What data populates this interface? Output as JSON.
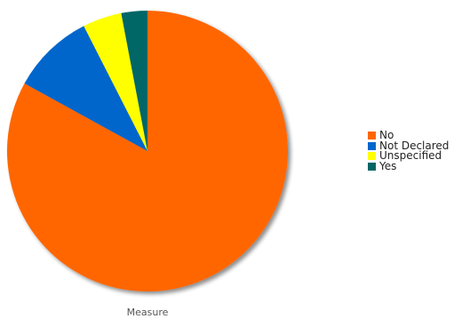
{
  "chart_data": {
    "type": "pie",
    "title": "",
    "xlabel": "Measure",
    "categories": [
      "No",
      "Not Declared",
      "Unspecified",
      "Yes"
    ],
    "values": [
      83,
      9.5,
      4.5,
      3
    ],
    "colors": [
      "#ff6600",
      "#0066cc",
      "#ffff00",
      "#006666"
    ],
    "legend": {
      "placement": "right",
      "entries": [
        "No",
        "Not Declared",
        "Unspecified",
        "Yes"
      ]
    }
  }
}
